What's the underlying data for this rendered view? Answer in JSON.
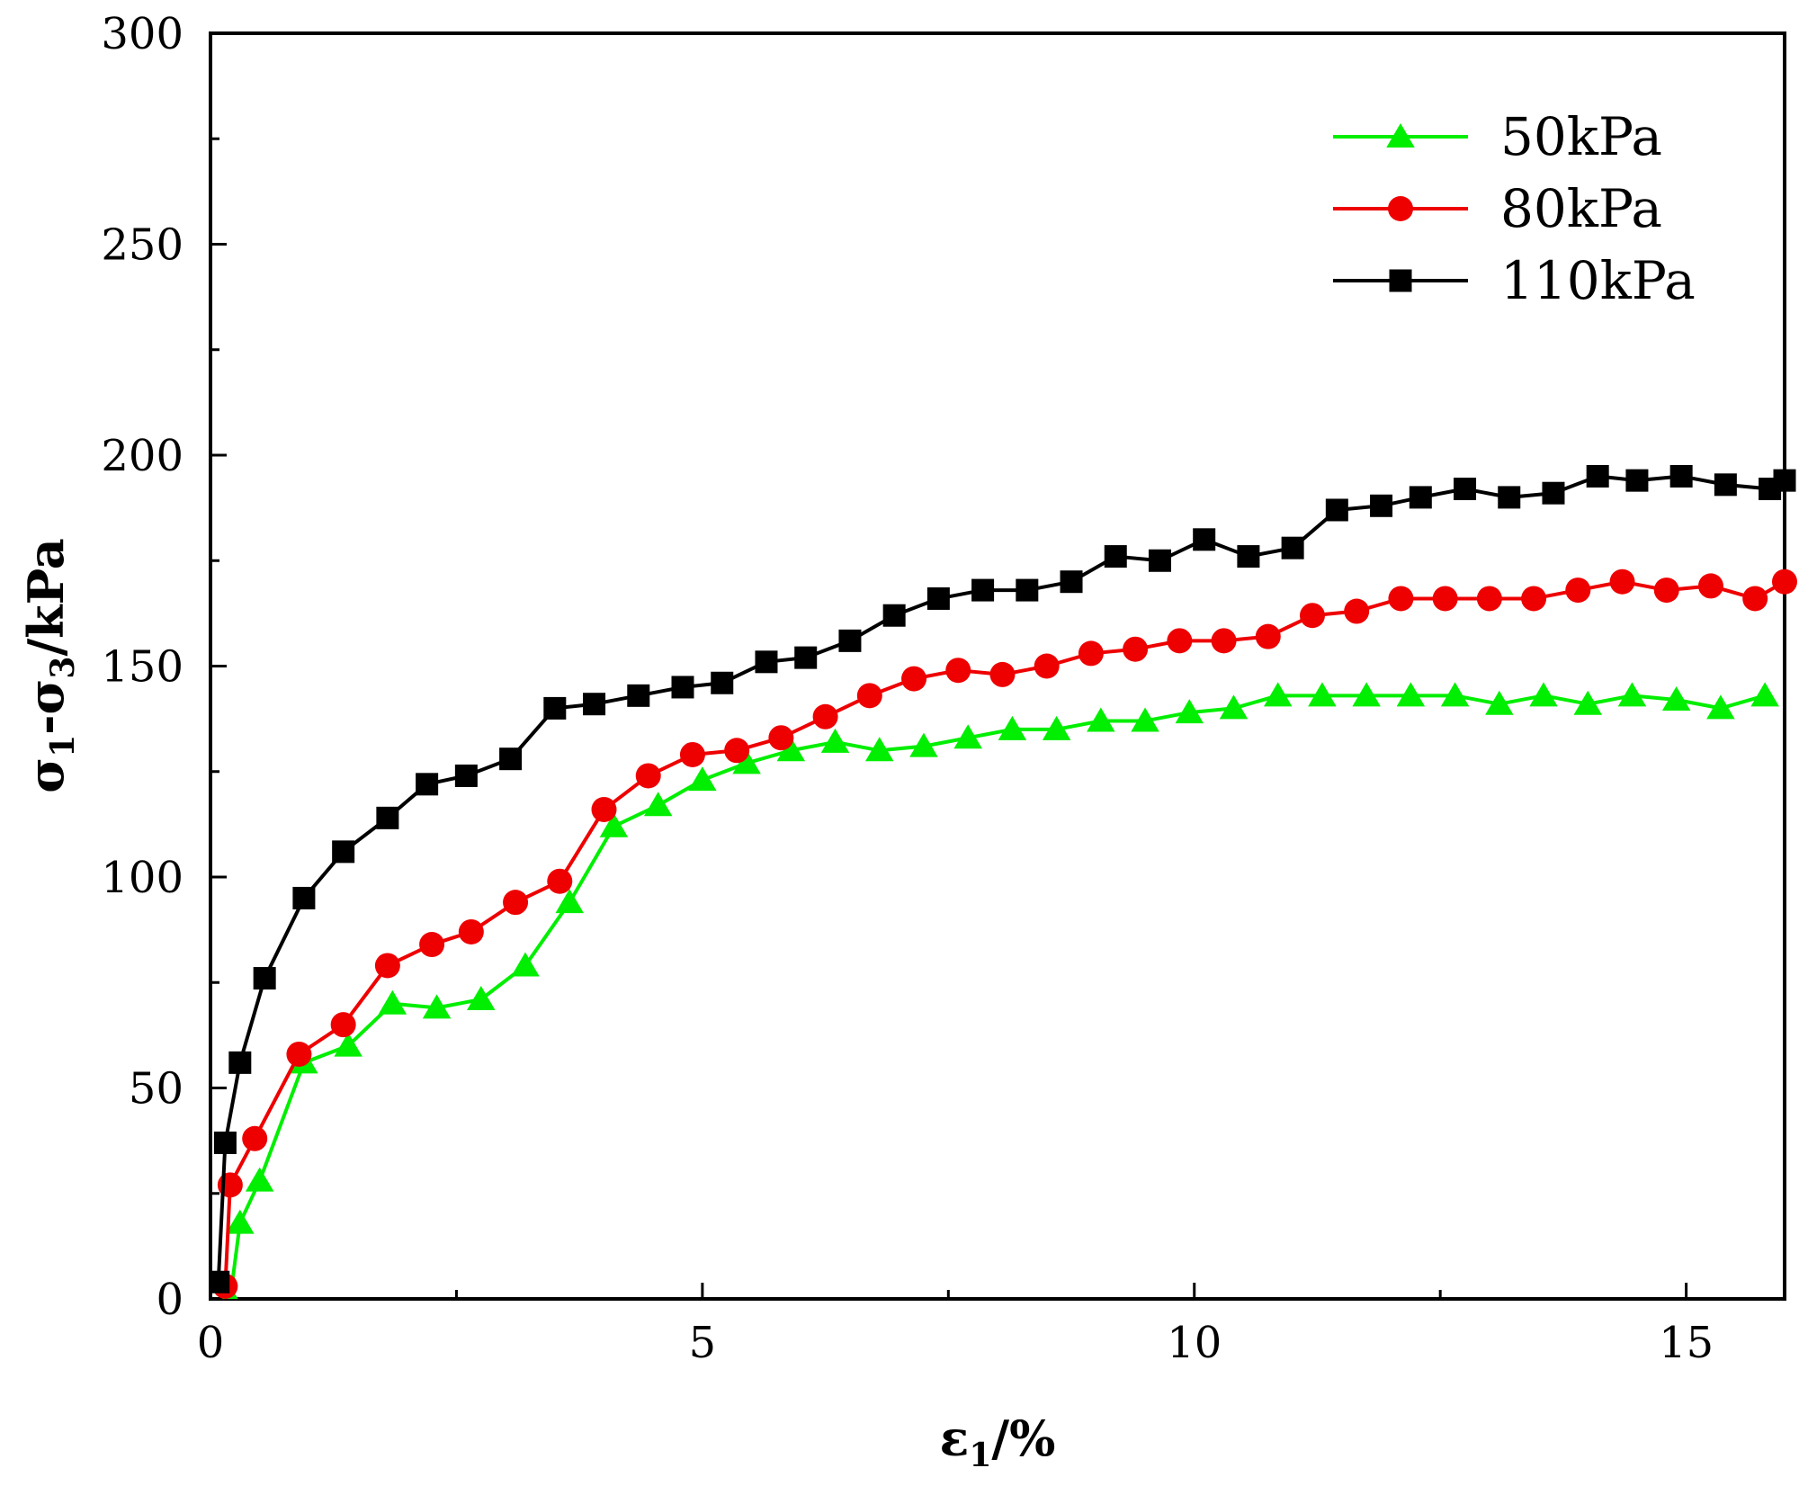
{
  "chart_data": {
    "type": "line",
    "title": "",
    "xlabel": "ε1/%",
    "xlabel_parts": {
      "base": "ε",
      "sub": "1",
      "suffix": "/%"
    },
    "ylabel": "σ1-σ3/kPa",
    "ylabel_parts": {
      "a": "σ",
      "a_sub": "1",
      "dash": "-",
      "b": "σ",
      "b_sub": "3",
      "suffix": "/kPa"
    },
    "xlim": [
      0,
      16
    ],
    "ylim": [
      0,
      300
    ],
    "xticks": [
      0,
      5,
      10,
      15
    ],
    "xtick_labels": [
      "0",
      "5",
      "10",
      "15"
    ],
    "yticks": [
      0,
      50,
      100,
      150,
      200,
      250,
      300
    ],
    "ytick_labels": [
      "0",
      "50",
      "100",
      "150",
      "200",
      "250",
      "300"
    ],
    "grid": false,
    "legend_position": "top-right",
    "series": [
      {
        "name": "50kPa",
        "color": "#00ee00",
        "marker": "triangle",
        "x": [
          0.2,
          0.3,
          0.5,
          0.95,
          1.4,
          1.85,
          2.3,
          2.75,
          3.2,
          3.65,
          4.1,
          4.55,
          5.0,
          5.45,
          5.9,
          6.35,
          6.8,
          7.25,
          7.7,
          8.15,
          8.6,
          9.05,
          9.5,
          9.95,
          10.4,
          10.85,
          11.3,
          11.75,
          12.2,
          12.65,
          13.1,
          13.55,
          14.0,
          14.45,
          14.9,
          15.35,
          15.8
        ],
        "y": [
          0,
          18,
          28,
          56,
          60,
          70,
          69,
          71,
          79,
          94,
          112,
          117,
          123,
          127,
          130,
          132,
          130,
          131,
          133,
          135,
          135,
          137,
          137,
          139,
          140,
          143,
          143,
          143,
          143,
          143,
          141,
          143,
          141,
          143,
          142,
          140,
          143
        ]
      },
      {
        "name": "80kPa",
        "color": "#ee0000",
        "marker": "circle",
        "x": [
          0.15,
          0.2,
          0.45,
          0.9,
          1.35,
          1.8,
          2.25,
          2.65,
          3.1,
          3.55,
          4.0,
          4.45,
          4.9,
          5.35,
          5.8,
          6.25,
          6.7,
          7.15,
          7.6,
          8.05,
          8.5,
          8.95,
          9.4,
          9.85,
          10.3,
          10.75,
          11.2,
          11.65,
          12.1,
          12.55,
          13.0,
          13.45,
          13.9,
          14.35,
          14.8,
          15.25,
          15.7,
          16.0
        ],
        "y": [
          3,
          27,
          38,
          58,
          65,
          79,
          84,
          87,
          94,
          99,
          116,
          124,
          129,
          130,
          133,
          138,
          143,
          147,
          149,
          148,
          150,
          153,
          154,
          156,
          156,
          157,
          162,
          163,
          166,
          166,
          166,
          166,
          168,
          170,
          168,
          169,
          166,
          170
        ]
      },
      {
        "name": "110kPa",
        "color": "#000000",
        "marker": "square",
        "x": [
          0.08,
          0.15,
          0.3,
          0.55,
          0.95,
          1.35,
          1.8,
          2.2,
          2.6,
          3.05,
          3.5,
          3.9,
          4.35,
          4.8,
          5.2,
          5.65,
          6.05,
          6.5,
          6.95,
          7.4,
          7.85,
          8.3,
          8.75,
          9.2,
          9.65,
          10.1,
          10.55,
          11.0,
          11.45,
          11.9,
          12.3,
          12.75,
          13.2,
          13.65,
          14.1,
          14.5,
          14.95,
          15.4,
          15.85,
          16.0
        ],
        "y": [
          4,
          37,
          56,
          76,
          95,
          106,
          114,
          122,
          124,
          128,
          140,
          141,
          143,
          145,
          146,
          151,
          152,
          156,
          162,
          166,
          168,
          168,
          170,
          176,
          175,
          180,
          176,
          178,
          187,
          188,
          190,
          192,
          190,
          191,
          195,
          194,
          195,
          193,
          192,
          194
        ]
      }
    ]
  }
}
